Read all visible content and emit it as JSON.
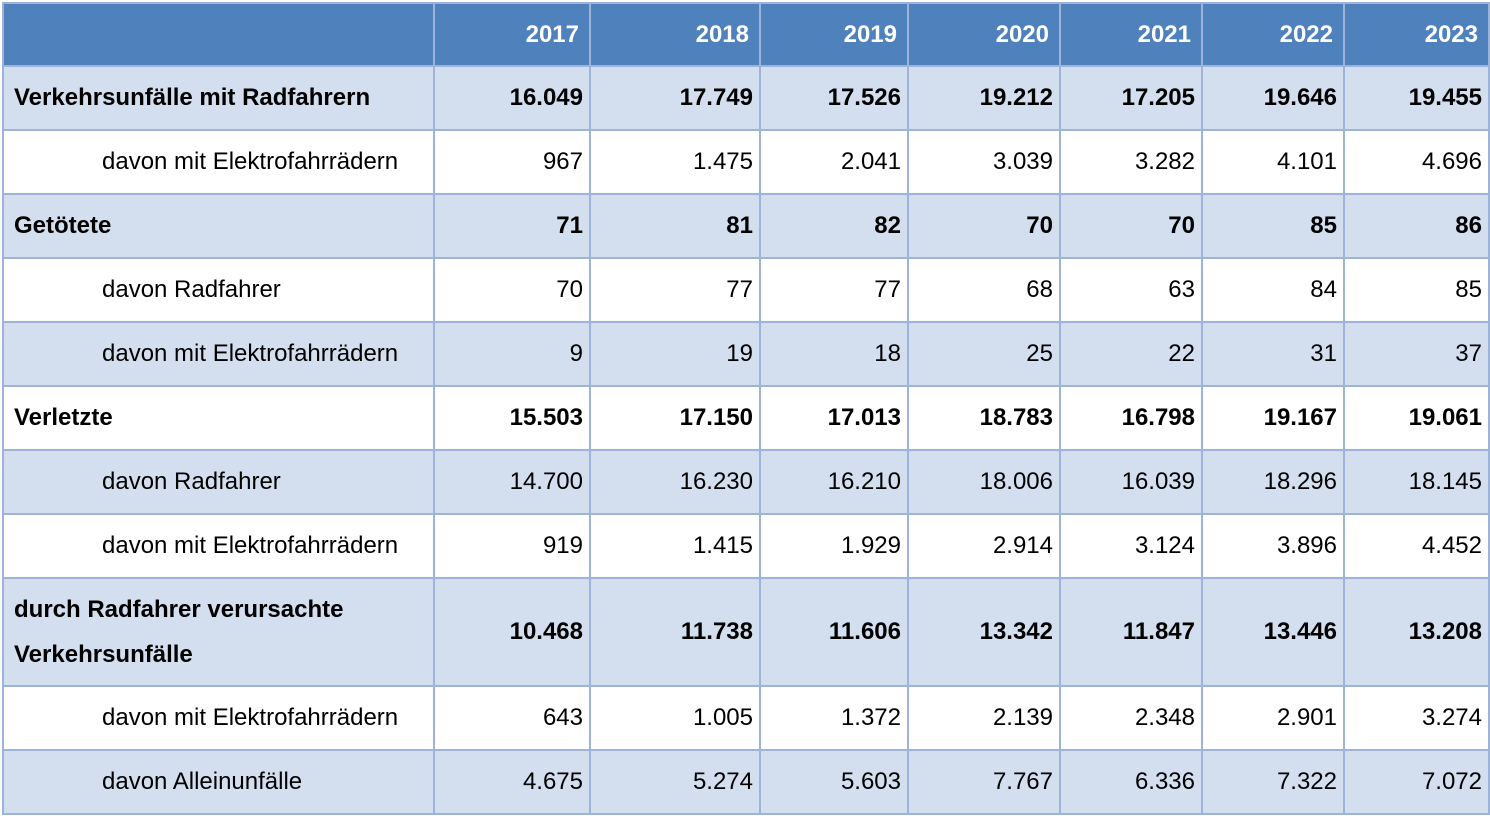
{
  "chart_data": {
    "type": "table",
    "title": "",
    "columns": [
      "",
      "2017",
      "2018",
      "2019",
      "2020",
      "2021",
      "2022",
      "2023"
    ],
    "rows": [
      {
        "label": "Verkehrsunfälle mit Radfahrern",
        "level": "main",
        "shade": true,
        "values": [
          "16.049",
          "17.749",
          "17.526",
          "19.212",
          "17.205",
          "19.646",
          "19.455"
        ]
      },
      {
        "label": "davon mit Elektrofahrrädern",
        "level": "sub",
        "shade": false,
        "values": [
          "967",
          "1.475",
          "2.041",
          "3.039",
          "3.282",
          "4.101",
          "4.696"
        ]
      },
      {
        "label": "Getötete",
        "level": "main",
        "shade": true,
        "values": [
          "71",
          "81",
          "82",
          "70",
          "70",
          "85",
          "86"
        ]
      },
      {
        "label": "davon Radfahrer",
        "level": "sub",
        "shade": false,
        "values": [
          "70",
          "77",
          "77",
          "68",
          "63",
          "84",
          "85"
        ]
      },
      {
        "label": "davon mit Elektrofahrrädern",
        "level": "sub",
        "shade": true,
        "values": [
          "9",
          "19",
          "18",
          "25",
          "22",
          "31",
          "37"
        ]
      },
      {
        "label": "Verletzte",
        "level": "main",
        "shade": false,
        "values": [
          "15.503",
          "17.150",
          "17.013",
          "18.783",
          "16.798",
          "19.167",
          "19.061"
        ]
      },
      {
        "label": "davon Radfahrer",
        "level": "sub",
        "shade": true,
        "values": [
          "14.700",
          "16.230",
          "16.210",
          "18.006",
          "16.039",
          "18.296",
          "18.145"
        ]
      },
      {
        "label": "davon mit Elektrofahrrädern",
        "level": "sub",
        "shade": false,
        "values": [
          "919",
          "1.415",
          "1.929",
          "2.914",
          "3.124",
          "3.896",
          "4.452"
        ]
      },
      {
        "label": "durch Radfahrer verursachte Verkehrsunfälle",
        "level": "main",
        "shade": true,
        "tall": true,
        "values": [
          "10.468",
          "11.738",
          "11.606",
          "13.342",
          "11.847",
          "13.446",
          "13.208"
        ]
      },
      {
        "label": "davon mit Elektrofahrrädern",
        "level": "sub",
        "shade": false,
        "values": [
          "643",
          "1.005",
          "1.372",
          "2.139",
          "2.348",
          "2.901",
          "3.274"
        ]
      },
      {
        "label": "davon Alleinunfälle",
        "level": "sub",
        "shade": true,
        "values": [
          "4.675",
          "5.274",
          "5.603",
          "7.767",
          "6.336",
          "7.322",
          "7.072"
        ]
      }
    ]
  },
  "colors": {
    "header_bg": "#4f81bd",
    "header_text": "#ffffff",
    "row_shade": "#d3dfef",
    "row_white": "#ffffff",
    "grid": "#9db3d9"
  }
}
